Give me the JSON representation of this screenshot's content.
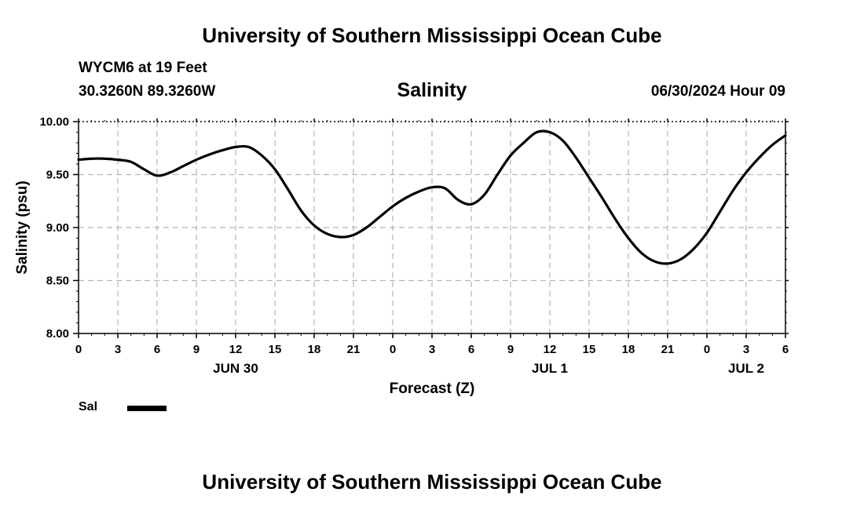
{
  "header": {
    "title": "University of Southern Mississippi Ocean Cube",
    "station": "WYCM6 at 19 Feet",
    "location": "30.3260N  89.3260W",
    "datetime": "06/30/2024 Hour 09"
  },
  "footer": {
    "title": "University of Southern Mississippi Ocean Cube"
  },
  "chart_data": {
    "type": "line",
    "title": "Salinity",
    "xlabel": "Forecast (Z)",
    "ylabel": "Salinity (psu)",
    "ylim": [
      8.0,
      10.0
    ],
    "y_ticks": [
      "8.00",
      "8.50",
      "9.00",
      "9.50",
      "10.00"
    ],
    "x_range_hours": [
      0,
      54
    ],
    "x_tick_labels": [
      "0",
      "3",
      "6",
      "9",
      "12",
      "15",
      "18",
      "21",
      "0",
      "3",
      "6",
      "9",
      "12",
      "15",
      "18",
      "21",
      "0",
      "3",
      "6"
    ],
    "date_labels": [
      {
        "label": "JUN 30",
        "hour": 12
      },
      {
        "label": "JUL 1",
        "hour": 36
      },
      {
        "label": "JUL 2",
        "hour": 51
      }
    ],
    "grid": true,
    "series": [
      {
        "name": "Sal",
        "color": "#000000",
        "x": [
          0,
          1,
          2,
          3,
          4,
          5,
          6,
          7,
          8,
          9,
          10,
          11,
          12,
          13,
          14,
          15,
          16,
          17,
          18,
          19,
          20,
          21,
          22,
          23,
          24,
          25,
          26,
          27,
          28,
          29,
          30,
          31,
          32,
          33,
          34,
          35,
          36,
          37,
          38,
          39,
          40,
          41,
          42,
          43,
          44,
          45,
          46,
          47,
          48,
          49,
          50,
          51,
          52,
          53,
          54
        ],
        "values": [
          9.64,
          9.65,
          9.65,
          9.64,
          9.62,
          9.55,
          9.49,
          9.52,
          9.58,
          9.64,
          9.69,
          9.73,
          9.76,
          9.76,
          9.68,
          9.55,
          9.36,
          9.16,
          9.02,
          8.94,
          8.91,
          8.93,
          9.0,
          9.1,
          9.2,
          9.28,
          9.34,
          9.38,
          9.37,
          9.26,
          9.22,
          9.31,
          9.5,
          9.68,
          9.8,
          9.9,
          9.9,
          9.82,
          9.66,
          9.47,
          9.28,
          9.08,
          8.9,
          8.76,
          8.68,
          8.66,
          8.7,
          8.8,
          8.95,
          9.15,
          9.35,
          9.52,
          9.66,
          9.78,
          9.87
        ]
      }
    ],
    "legend": "bottom-left"
  }
}
